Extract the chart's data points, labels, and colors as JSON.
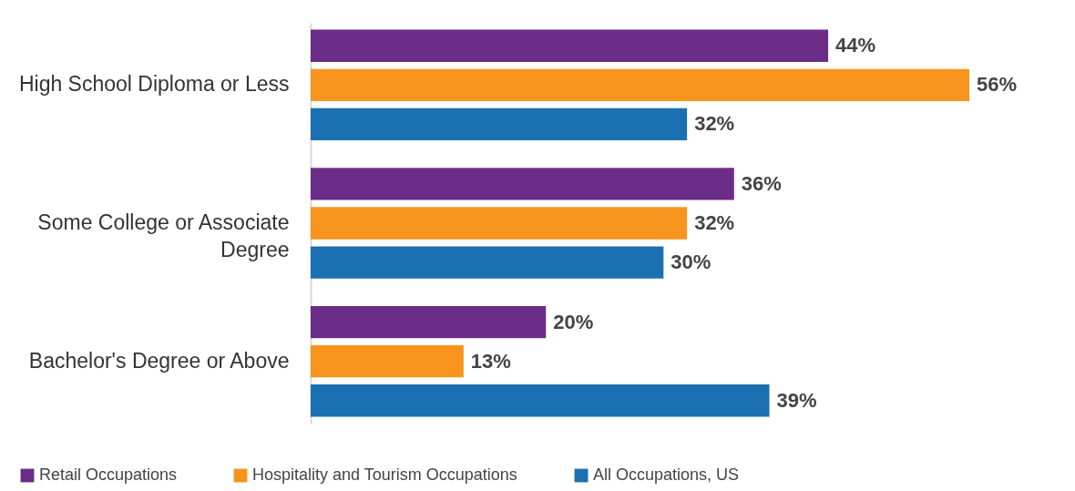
{
  "chart_data": {
    "type": "bar",
    "orientation": "horizontal",
    "legend": "bottom",
    "categories": [
      "High School Diploma or Less",
      "Some College or Associate Degree",
      "Bachelor's Degree or Above"
    ],
    "series": [
      {
        "name": "Retail Occupations",
        "color": "#6b2c87",
        "values": [
          44,
          36,
          20
        ],
        "value_labels": [
          "44%",
          "36%",
          "20%"
        ]
      },
      {
        "name": "Hospitality and Tourism Occupations",
        "color": "#f7941d",
        "values": [
          56,
          32,
          13
        ],
        "value_labels": [
          "56%",
          "32%",
          "13%"
        ]
      },
      {
        "name": "All Occupations, US",
        "color": "#1a70b0",
        "values": [
          32,
          30,
          39
        ],
        "value_labels": [
          "32%",
          "30%",
          "39%"
        ]
      }
    ]
  }
}
